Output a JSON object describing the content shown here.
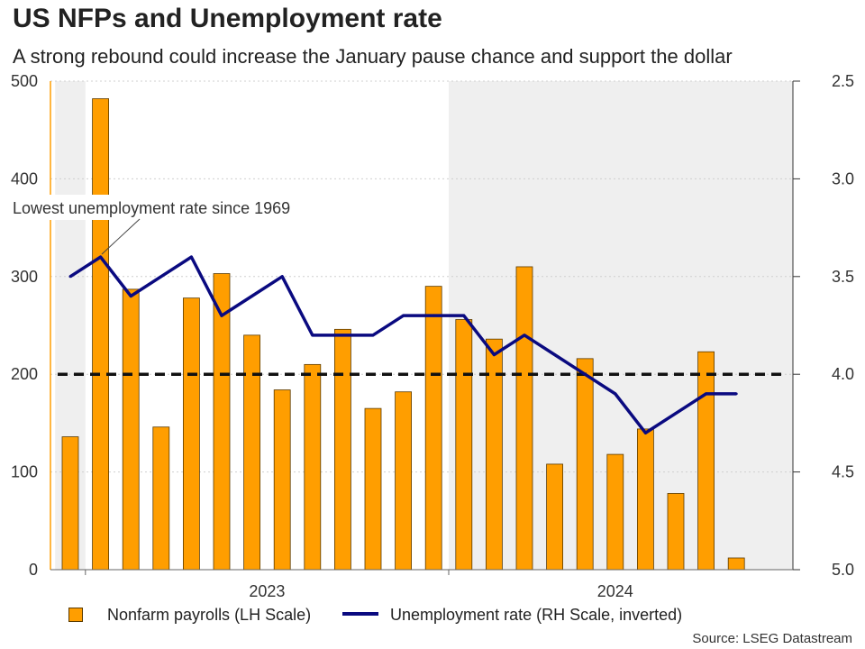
{
  "title": "US NFPs and Unemployment rate",
  "subtitle": "A strong rebound could increase the January pause chance and support the dollar",
  "source": "Source: LSEG Datastream",
  "annotation": "Lowest unemployment rate since 1969",
  "colors": {
    "bar": "#FF9E00",
    "bar_edge": "#5a3a00",
    "line": "#0A0A80",
    "ref": "#111111",
    "shade": "#EFEFEF"
  },
  "chart_data": {
    "type": "bar",
    "title": "US NFPs and Unemployment rate",
    "x": [
      "2022-12",
      "2023-01",
      "2023-02",
      "2023-03",
      "2023-04",
      "2023-05",
      "2023-06",
      "2023-07",
      "2023-08",
      "2023-09",
      "2023-10",
      "2023-11",
      "2023-12",
      "2024-01",
      "2024-02",
      "2024-03",
      "2024-04",
      "2024-05",
      "2024-06",
      "2024-07",
      "2024-08",
      "2024-09",
      "2024-10",
      "2024-11"
    ],
    "x_tick_labels": [
      "2023",
      "2024"
    ],
    "y_left": {
      "label": "",
      "lim": [
        0,
        500
      ],
      "ticks": [
        0,
        100,
        200,
        300,
        400,
        500
      ]
    },
    "y_right": {
      "label": "",
      "lim": [
        2.5,
        5.0
      ],
      "inverted": true,
      "ticks": [
        "2.5",
        "3.0",
        "3.5",
        "4.0",
        "4.5",
        "5.0"
      ]
    },
    "series": [
      {
        "name": "Nonfarm payrolls (LH Scale)",
        "type": "bar",
        "axis": "left",
        "values": [
          136,
          482,
          287,
          146,
          278,
          303,
          240,
          184,
          210,
          246,
          165,
          182,
          290,
          256,
          236,
          310,
          108,
          216,
          118,
          144,
          78,
          223,
          12,
          null
        ]
      },
      {
        "name": "Unemployment rate (RH Scale, inverted)",
        "type": "line",
        "axis": "right",
        "values": [
          3.5,
          3.4,
          3.6,
          3.5,
          3.4,
          3.7,
          3.6,
          3.5,
          3.8,
          3.8,
          3.8,
          3.7,
          3.7,
          3.7,
          3.9,
          3.8,
          3.9,
          4.0,
          4.1,
          4.3,
          4.2,
          4.1,
          4.1,
          null
        ]
      }
    ],
    "reference_line": {
      "axis": "left",
      "value": 200,
      "style": "dashed"
    },
    "shaded_periods": [
      [
        "2022-12",
        "2022-12"
      ],
      [
        "2024-01",
        "2024-11"
      ]
    ],
    "legend": {
      "position": "bottom",
      "items": [
        "Nonfarm payrolls (LH Scale)",
        "Unemployment rate (RH Scale, inverted)"
      ]
    },
    "grid": true
  }
}
